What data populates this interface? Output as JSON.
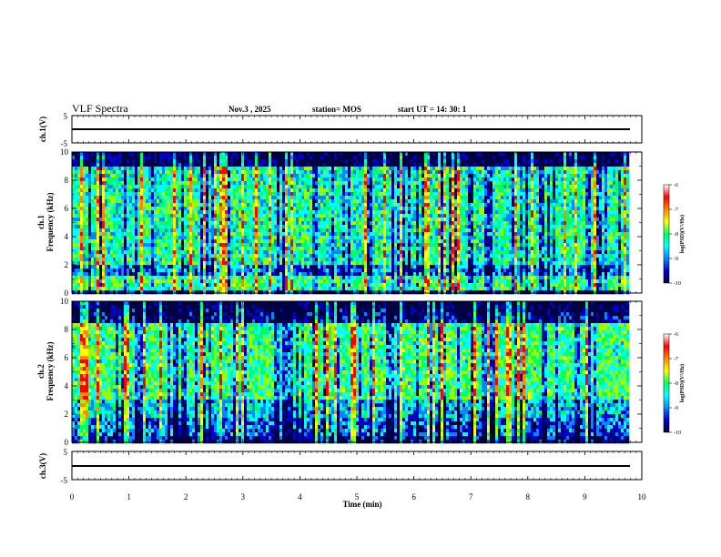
{
  "header": {
    "title": "VLF Spectra",
    "date": "Nov.3  , 2025",
    "station": "station= MOS",
    "start": "start  UT  =   14: 30: 1"
  },
  "colors": {
    "spectrum": [
      "#000044",
      "#0000cc",
      "#0088ff",
      "#00ffff",
      "#00ff66",
      "#99ff00",
      "#ffff00",
      "#ff8800",
      "#ff0000",
      "#ffffff"
    ]
  },
  "chart_data": [
    {
      "type": "line",
      "name": "ch1-waveform",
      "ylabel": "ch.1(V)",
      "ylim": [
        -5,
        5
      ],
      "yticks": [
        "5",
        "-5"
      ],
      "x": [
        0,
        9.8
      ],
      "values": [
        0,
        0
      ]
    },
    {
      "type": "heatmap",
      "name": "ch1-spectrogram",
      "ylabel_top": "ch.1",
      "ylabel": "Frequency  (kHz)",
      "ylim": [
        0,
        10
      ],
      "yticks": [
        "0",
        "2",
        "4",
        "6",
        "8",
        "10"
      ],
      "x_range_min": [
        0,
        9.8
      ],
      "colorbar": {
        "label": "log(PSD)(V²/Hz)",
        "ticks": [
          "-6",
          "-7",
          "-8",
          "-9",
          "-10"
        ],
        "range": [
          -10,
          -6
        ]
      }
    },
    {
      "type": "heatmap",
      "name": "ch2-spectrogram",
      "ylabel_top": "ch.2",
      "ylabel": "Frequency  (kHz)",
      "ylim": [
        0,
        10
      ],
      "yticks": [
        "0",
        "2",
        "4",
        "6",
        "8",
        "10"
      ],
      "x_range_min": [
        0,
        9.8
      ],
      "colorbar": {
        "label": "log(PSD)(V²/Hz)",
        "ticks": [
          "-6",
          "-7",
          "-8",
          "-9",
          "-10"
        ],
        "range": [
          -10,
          -6
        ]
      }
    },
    {
      "type": "line",
      "name": "ch3-waveform",
      "ylabel": "ch.3(V)",
      "ylim": [
        -5,
        5
      ],
      "yticks": [
        "5",
        "-5"
      ],
      "x": [
        0,
        9.8
      ],
      "values": [
        0,
        0
      ]
    }
  ],
  "xaxis": {
    "label": "Time  (min)",
    "xlim": [
      0,
      10
    ],
    "ticks": [
      "0",
      "1",
      "2",
      "3",
      "4",
      "5",
      "6",
      "7",
      "8",
      "9",
      "10"
    ]
  }
}
